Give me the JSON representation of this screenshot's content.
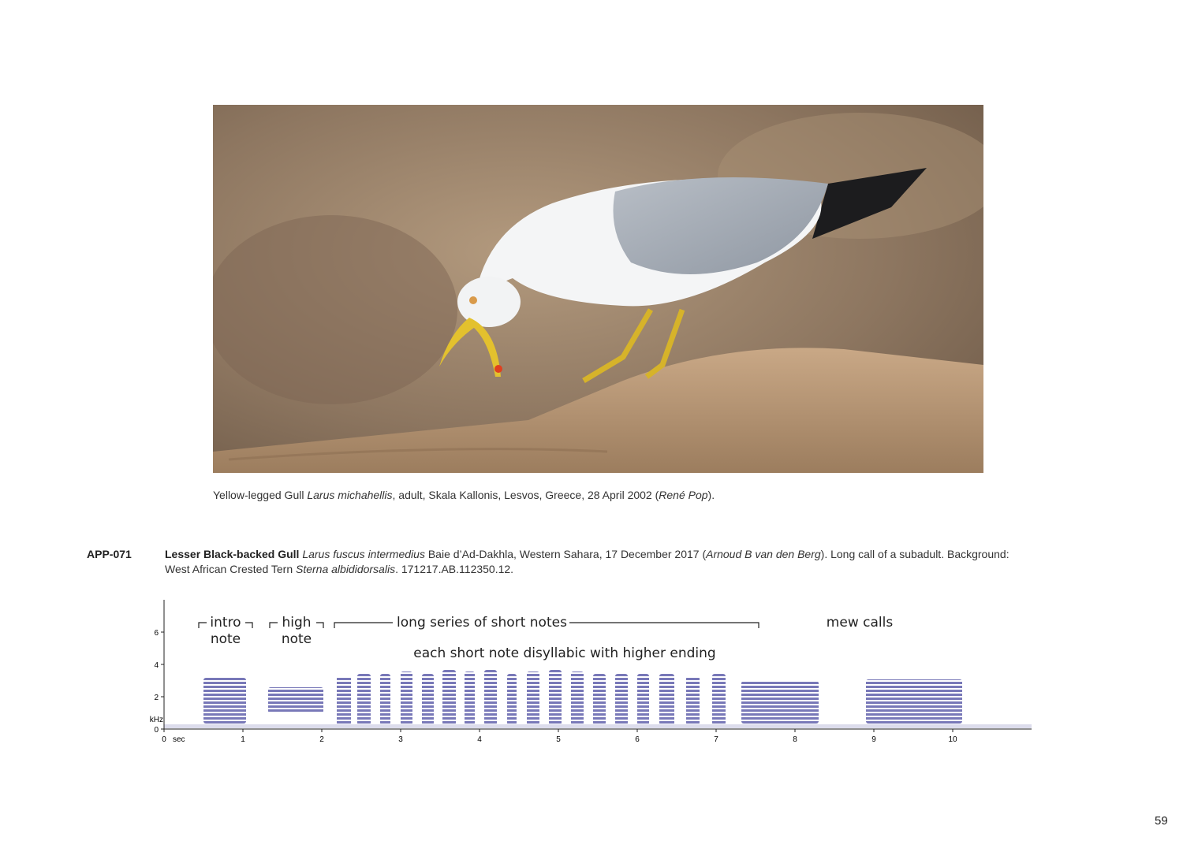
{
  "photo_caption": [
    "Yellow-legged Gull ",
    "Larus michahellis",
    ", adult, Skala Kallonis, Lesvos, Greece, 28 April 2002 (",
    "René Pop",
    ")."
  ],
  "recording": {
    "code": "APP-071",
    "species": "Lesser Black-backed Gull",
    "text": [
      " ",
      "Larus fuscus intermedius",
      " Baie d’Ad-Dakhla, Western Sahara, 17 December 2017 (",
      "Arnoud B van den Berg",
      "). Long call of a subadult. Background: West African Crested Tern ",
      "Sterna albididorsalis",
      ". 171217.AB.112350.12."
    ]
  },
  "spectrogram": {
    "xlim": [
      0,
      11
    ],
    "ylim": [
      0,
      8
    ],
    "xticks": [
      0,
      1,
      2,
      3,
      4,
      5,
      6,
      7,
      8,
      9,
      10
    ],
    "yticks": [
      0,
      2,
      4,
      6
    ],
    "xlabel": "sec",
    "ylabel": "kHz",
    "annotations": {
      "intro": [
        "intro",
        "note"
      ],
      "high": [
        "high",
        "note"
      ],
      "series": "long series of short notes",
      "mew": "mew calls",
      "detail": "each short note disyllabic with higher ending"
    }
  },
  "page_number": "59"
}
